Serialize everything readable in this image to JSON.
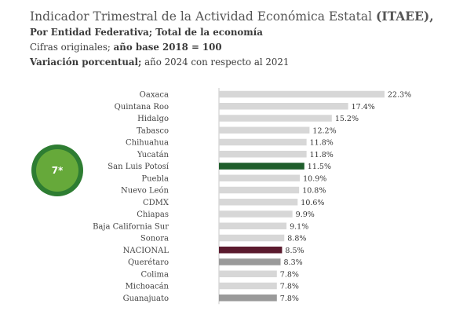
{
  "header": {
    "title_main": "Indicador Trimestral de la Actividad Económica Estatal",
    "title_bold": "(ITAEE),",
    "line2": "Por Entidad Federativa; Total de la economía",
    "line3_normal": "Cifras originales; ",
    "line3_bold": "año base 2018 = 100",
    "line4_bold": "Variación porcentual;",
    "line4_normal": " año 2024 con respecto al 2021"
  },
  "badge": {
    "label": "7*",
    "outer_color": "#2e7d32",
    "inner_color": "#66a93a"
  },
  "colors": {
    "default": "#d7d7d7",
    "highlight_state": "#1f5e2c",
    "nacional": "#5b1a2e",
    "grey_dark": "#9a9a9a",
    "axis": "#c8c8c8"
  },
  "chart_data": {
    "type": "bar",
    "orientation": "horizontal",
    "categories": [
      "Oaxaca",
      "Quintana Roo",
      "Hidalgo",
      "Tabasco",
      "Chihuahua",
      "Yucatán",
      "San Luis Potosí",
      "Puebla",
      "Nuevo León",
      "CDMX",
      "Chiapas",
      "Baja California Sur",
      "Sonora",
      "NACIONAL",
      "Querétaro",
      "Colima",
      "Michoacán",
      "Guanajuato"
    ],
    "values": [
      22.3,
      17.4,
      15.2,
      12.2,
      11.8,
      11.8,
      11.5,
      10.9,
      10.8,
      10.6,
      9.9,
      9.1,
      8.8,
      8.5,
      8.3,
      7.8,
      7.8,
      7.8
    ],
    "data_labels": [
      "22.3%",
      "17.4%",
      "15.2%",
      "12.2%",
      "11.8%",
      "11.8%",
      "11.5%",
      "10.9%",
      "10.8%",
      "10.6%",
      "9.9%",
      "9.1%",
      "8.8%",
      "8.5%",
      "8.3%",
      "7.8%",
      "7.8%",
      "7.8%"
    ],
    "bar_colors": [
      "default",
      "default",
      "default",
      "default",
      "default",
      "default",
      "highlight_state",
      "default",
      "default",
      "default",
      "default",
      "default",
      "default",
      "nacional",
      "grey_dark",
      "default",
      "default",
      "grey_dark"
    ],
    "xlim": [
      0,
      22.3
    ],
    "grid": false,
    "legend": "none"
  }
}
